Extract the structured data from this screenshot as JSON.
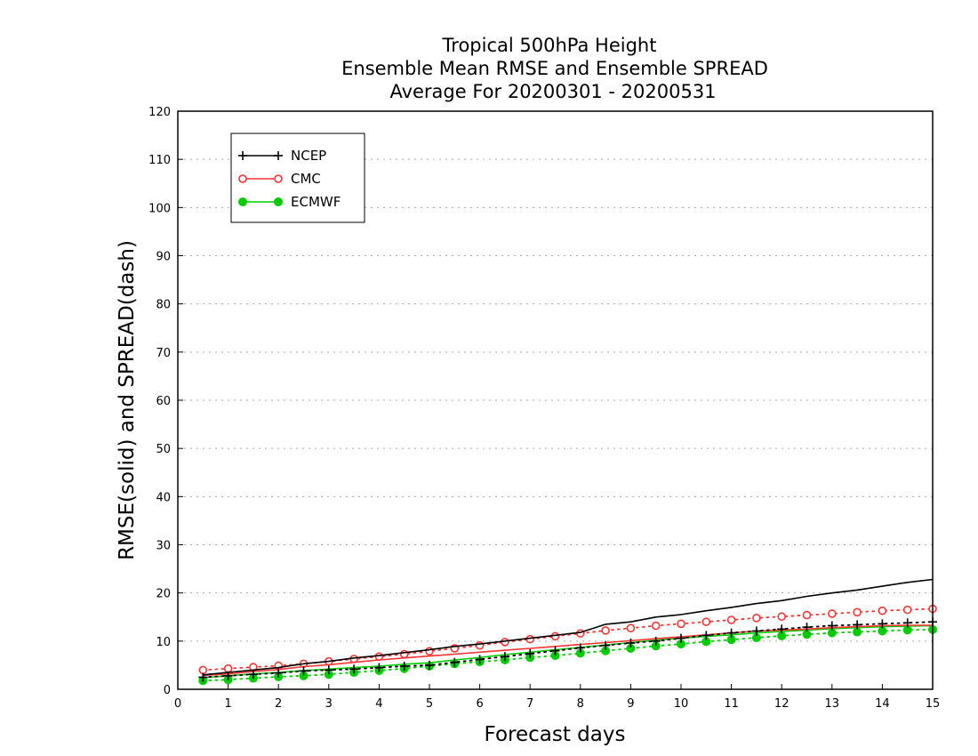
{
  "chart_data": {
    "type": "line",
    "title_lines": [
      "Tropical 500hPa Height",
      "Ensemble Mean RMSE and Ensemble SPREAD",
      "Average For 20200301 - 20200531"
    ],
    "xlabel": "Forecast days",
    "ylabel": "RMSE(solid) and SPREAD(dash)",
    "xlim": [
      0,
      15
    ],
    "ylim": [
      0,
      120
    ],
    "xticks": [
      0,
      1,
      2,
      3,
      4,
      5,
      6,
      7,
      8,
      9,
      10,
      11,
      12,
      13,
      14,
      15
    ],
    "yticks": [
      0,
      10,
      20,
      30,
      40,
      50,
      60,
      70,
      80,
      90,
      100,
      110,
      120
    ],
    "grid": "horizontal dotted",
    "legend_position": "top-left",
    "x": [
      0.5,
      1,
      1.5,
      2,
      2.5,
      3,
      3.5,
      4,
      4.5,
      5,
      5.5,
      6,
      6.5,
      7,
      7.5,
      8,
      8.5,
      9,
      9.5,
      10,
      10.5,
      11,
      11.5,
      12,
      12.5,
      13,
      13.5,
      14,
      14.5,
      15
    ],
    "series": [
      {
        "name": "NCEP",
        "color": "#000000",
        "marker": "plus",
        "rmse": [
          3.0,
          3.5,
          4.0,
          4.5,
          5.3,
          5.8,
          6.5,
          7.0,
          7.6,
          8.2,
          8.9,
          9.4,
          10.0,
          10.6,
          11.2,
          11.8,
          13.5,
          14.0,
          15.0,
          15.5,
          16.3,
          17.0,
          17.8,
          18.4,
          19.3,
          20.0,
          20.6,
          21.4,
          22.2,
          22.8
        ],
        "spread": [
          2.5,
          2.8,
          3.1,
          3.4,
          3.8,
          4.0,
          4.2,
          4.5,
          4.8,
          5.0,
          5.6,
          6.2,
          6.8,
          7.4,
          8.0,
          8.6,
          9.1,
          9.6,
          10.0,
          10.6,
          11.2,
          11.7,
          12.1,
          12.5,
          12.9,
          13.2,
          13.4,
          13.6,
          13.8,
          14.0
        ]
      },
      {
        "name": "CMC",
        "color": "#ff3333",
        "marker": "open-circle",
        "rmse": [
          2.9,
          3.2,
          3.7,
          4.1,
          4.7,
          5.1,
          5.6,
          6.1,
          6.5,
          6.9,
          7.3,
          7.7,
          8.1,
          8.5,
          8.9,
          9.3,
          9.7,
          10.1,
          10.5,
          10.9,
          11.3,
          11.7,
          12.1,
          12.3,
          12.5,
          12.8,
          13.0,
          13.2,
          13.3,
          13.3
        ],
        "spread": [
          4.0,
          4.3,
          4.6,
          4.9,
          5.3,
          5.8,
          6.3,
          6.8,
          7.3,
          7.9,
          8.5,
          9.1,
          9.8,
          10.4,
          11.0,
          11.6,
          12.2,
          12.7,
          13.2,
          13.6,
          14.0,
          14.4,
          14.8,
          15.1,
          15.4,
          15.7,
          16.0,
          16.3,
          16.5,
          16.7
        ]
      },
      {
        "name": "ECMWF",
        "color": "#00cc00",
        "marker": "filled-circle",
        "rmse": [
          2.4,
          2.8,
          3.2,
          3.5,
          3.9,
          4.2,
          4.5,
          4.8,
          5.2,
          5.5,
          6.1,
          6.6,
          7.2,
          7.7,
          8.2,
          8.7,
          9.2,
          9.7,
          10.2,
          10.6,
          11.0,
          11.3,
          11.7,
          12.0,
          12.3,
          12.6,
          12.8,
          13.0,
          13.1,
          13.2
        ],
        "spread": [
          1.8,
          2.0,
          2.3,
          2.6,
          2.8,
          3.1,
          3.5,
          3.9,
          4.3,
          4.8,
          5.3,
          5.7,
          6.1,
          6.6,
          7.0,
          7.5,
          8.0,
          8.5,
          9.0,
          9.4,
          9.9,
          10.3,
          10.7,
          11.1,
          11.4,
          11.7,
          11.9,
          12.1,
          12.3,
          12.4
        ]
      }
    ]
  }
}
